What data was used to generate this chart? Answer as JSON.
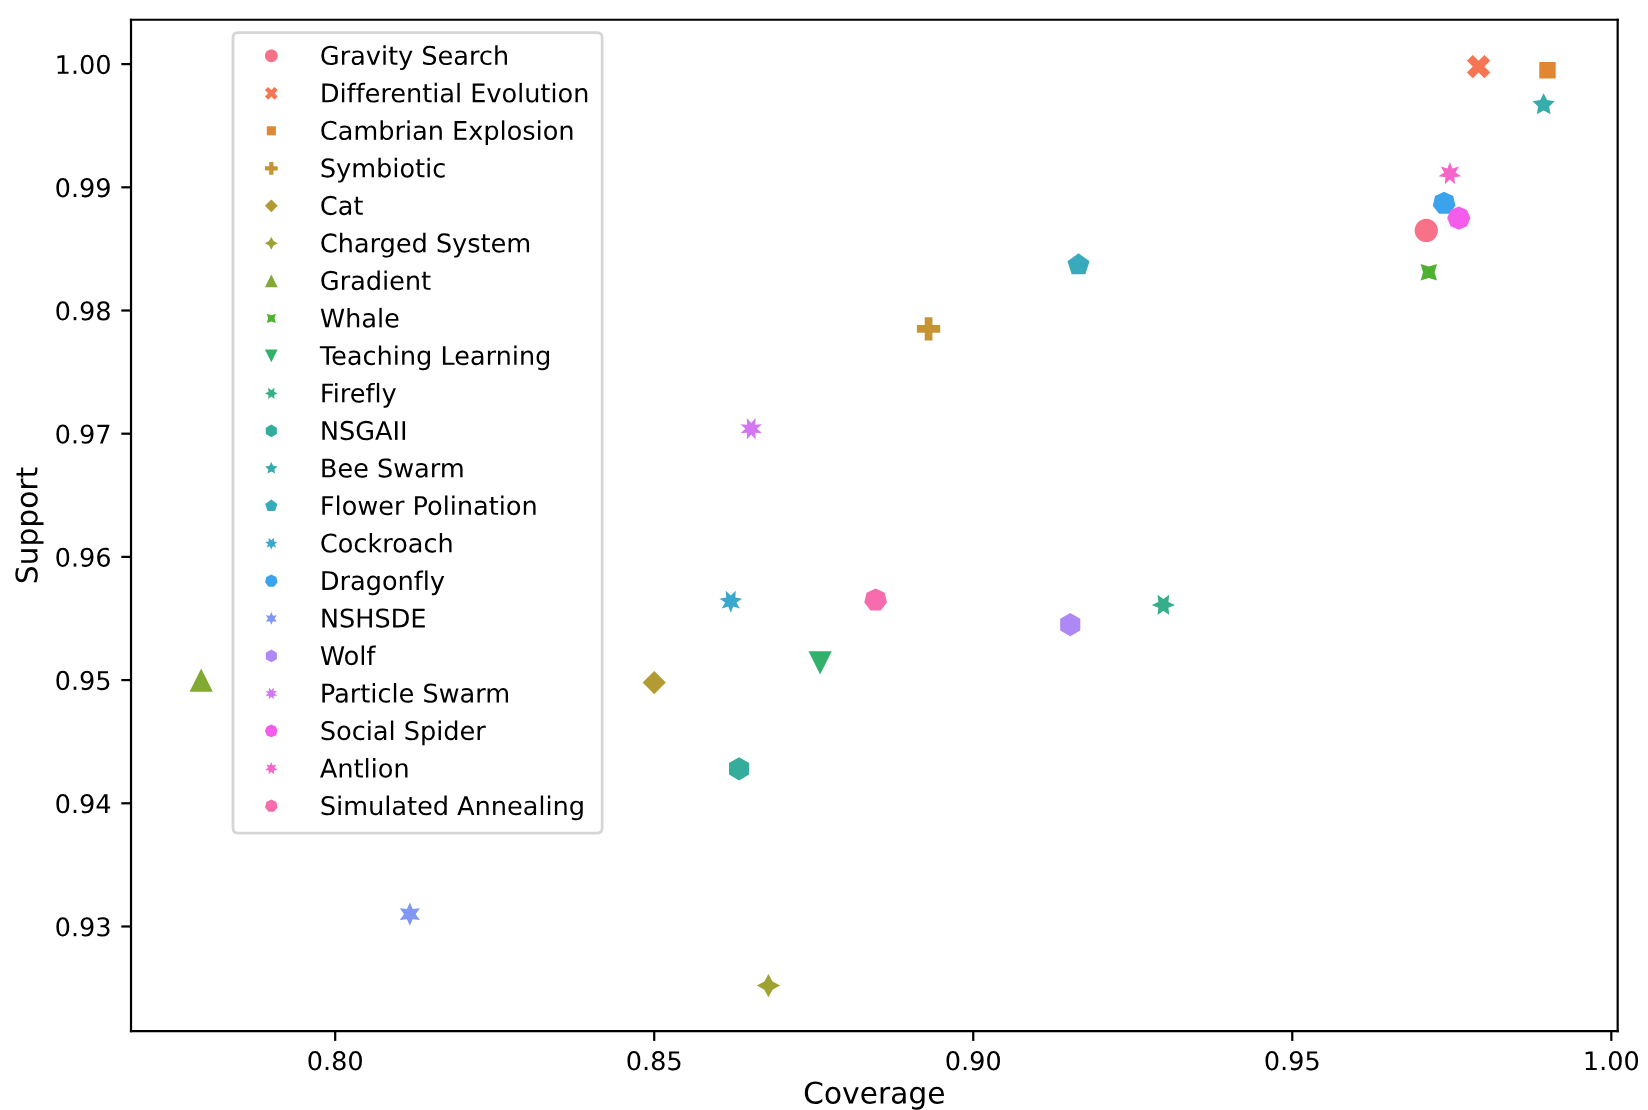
{
  "chart_data": {
    "type": "scatter",
    "xlabel": "Coverage",
    "ylabel": "Support",
    "xlim": [
      0.768,
      1.001
    ],
    "ylim": [
      0.9215,
      1.0036
    ],
    "xticks": [
      {
        "value": 0.8,
        "label": "0.80"
      },
      {
        "value": 0.85,
        "label": "0.85"
      },
      {
        "value": 0.9,
        "label": "0.90"
      },
      {
        "value": 0.95,
        "label": "0.95"
      },
      {
        "value": 1.0,
        "label": "1.00"
      }
    ],
    "yticks": [
      {
        "value": 0.93,
        "label": "0.93"
      },
      {
        "value": 0.94,
        "label": "0.94"
      },
      {
        "value": 0.95,
        "label": "0.95"
      },
      {
        "value": 0.96,
        "label": "0.96"
      },
      {
        "value": 0.97,
        "label": "0.97"
      },
      {
        "value": 0.98,
        "label": "0.98"
      },
      {
        "value": 0.99,
        "label": "0.99"
      },
      {
        "value": 1.0,
        "label": "1.00"
      }
    ],
    "legend": "top left",
    "series": [
      {
        "name": "Gravity Search",
        "color": "#f77189",
        "marker": "circle",
        "x": [
          0.971
        ],
        "values": [
          0.9865
        ]
      },
      {
        "name": "Differential Evolution",
        "color": "#f77553",
        "marker": "cross",
        "x": [
          0.9792
        ],
        "values": [
          0.9998
        ]
      },
      {
        "name": "Cambrian Explosion",
        "color": "#df8732",
        "marker": "square",
        "x": [
          0.99
        ],
        "values": [
          0.9995
        ]
      },
      {
        "name": "Symbiotic",
        "color": "#c69432",
        "x": [
          0.893
        ],
        "values": [
          0.9785
        ]
      },
      {
        "name": "Cat",
        "color": "#b19b32",
        "marker": "diamond",
        "x": [
          0.85
        ],
        "values": [
          0.9498
        ]
      },
      {
        "name": "Charged System",
        "color": "#9da231",
        "x": [
          0.8679
        ],
        "values": [
          0.9252
        ]
      },
      {
        "name": "Gradient",
        "color": "#82a931",
        "marker": "triangle",
        "x": [
          0.779
        ],
        "values": [
          0.95
        ]
      },
      {
        "name": "Whale",
        "color": "#50b131",
        "x": [
          0.9714
        ],
        "values": [
          0.9831
        ]
      },
      {
        "name": "Teaching Learning",
        "color": "#33b16c",
        "x": [
          0.876
        ],
        "values": [
          0.9514
        ]
      },
      {
        "name": "Firefly",
        "color": "#34af8a",
        "x": [
          0.9298
        ],
        "values": [
          0.9561
        ]
      },
      {
        "name": "NSGAII",
        "color": "#35ad9c",
        "x": [
          0.8633
        ],
        "values": [
          0.9428
        ]
      },
      {
        "name": "Bee Swarm",
        "color": "#36acab",
        "marker": "star",
        "x": [
          0.9894
        ],
        "values": [
          0.9967
        ]
      },
      {
        "name": "Flower Polination",
        "color": "#37aabb",
        "x": [
          0.9165
        ],
        "values": [
          0.9837
        ]
      },
      {
        "name": "Cockroach",
        "color": "#39a8cd",
        "x": [
          0.862
        ],
        "values": [
          0.9564
        ]
      },
      {
        "name": "Dragonfly",
        "color": "#3ba3ec",
        "x": [
          0.9738
        ],
        "values": [
          0.9887
        ]
      },
      {
        "name": "NSHSDE",
        "color": "#8197f4",
        "x": [
          0.8117
        ],
        "values": [
          0.931
        ]
      },
      {
        "name": "Wolf",
        "color": "#ae88f4",
        "x": [
          0.9152
        ],
        "values": [
          0.9545
        ]
      },
      {
        "name": "Particle Swarm",
        "color": "#d475f4",
        "x": [
          0.8652
        ],
        "values": [
          0.9704
        ]
      },
      {
        "name": "Social Spider",
        "color": "#f45deb",
        "x": [
          0.9761
        ],
        "values": [
          0.9875
        ]
      },
      {
        "name": "Antlion",
        "color": "#f566c9",
        "x": [
          0.9747
        ],
        "values": [
          0.9911
        ]
      },
      {
        "name": "Simulated Annealing",
        "color": "#f66cac",
        "x": [
          0.8847
        ],
        "values": [
          0.9565
        ]
      }
    ]
  }
}
